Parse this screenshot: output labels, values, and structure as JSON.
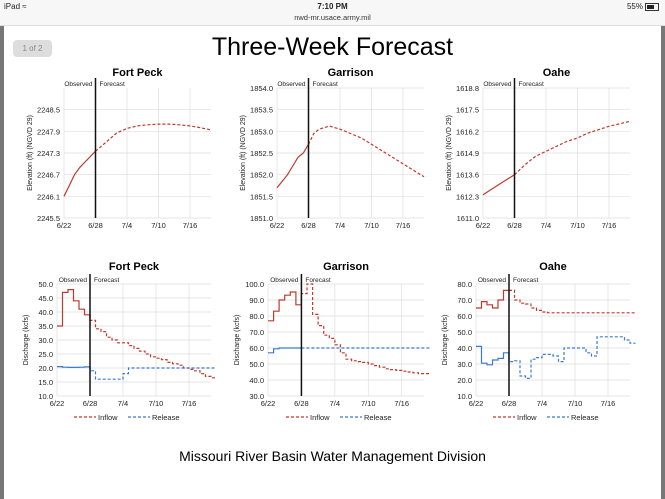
{
  "status_bar": {
    "device": "iPad",
    "wifi_icon": "wifi-icon",
    "time": "7:10 PM",
    "url": "nwd-mr.usace.army.mil",
    "battery": "55%"
  },
  "page_badge": "1 of 2",
  "title": "Three-Week Forecast",
  "footer": "Missouri River Basin Water Management Division",
  "colors": {
    "inflow": "#c0392b",
    "release": "#3c7bd0",
    "divider": "#111111",
    "grid": "#dddddd"
  },
  "chart_data": [
    {
      "type": "line",
      "title": "Fort Peck",
      "ylabel": "Elevation (ft) (NGVD 29)",
      "ylim": [
        2245.5,
        2249.1
      ],
      "yticks": [
        "2245.5",
        "2246.1",
        "2246.7",
        "2247.3",
        "2247.9",
        "2248.5"
      ],
      "xticks": [
        "6/22",
        "6/28",
        "7/4",
        "7/10",
        "7/16"
      ],
      "observed_label": "Observed",
      "forecast_label": "Forecast",
      "split_day": 6,
      "days": 28,
      "series": [
        {
          "name": "Elevation",
          "x": [
            0,
            1,
            2,
            3,
            4,
            5,
            6,
            8,
            10,
            12,
            14,
            16,
            18,
            20,
            22,
            24,
            26,
            28
          ],
          "values": [
            2246.1,
            2246.4,
            2246.7,
            2246.9,
            2247.05,
            2247.2,
            2247.35,
            2247.6,
            2247.85,
            2247.98,
            2248.05,
            2248.08,
            2248.1,
            2248.1,
            2248.08,
            2248.05,
            2248.0,
            2247.94
          ]
        }
      ]
    },
    {
      "type": "line",
      "title": "Garrison",
      "ylabel": "Elevation (ft) (NGVD 29)",
      "ylim": [
        1851.0,
        1854.0
      ],
      "yticks": [
        "1851.0",
        "1851.5",
        "1852.0",
        "1852.5",
        "1853.0",
        "1853.5",
        "1854.0"
      ],
      "xticks": [
        "6/22",
        "6/28",
        "7/4",
        "7/10",
        "7/16"
      ],
      "observed_label": "Observed",
      "forecast_label": "Forecast",
      "split_day": 6,
      "days": 28,
      "series": [
        {
          "name": "Elevation",
          "x": [
            0,
            1,
            2,
            3,
            4,
            5,
            6,
            7,
            8,
            10,
            12,
            14,
            16,
            18,
            20,
            22,
            24,
            26,
            28
          ],
          "values": [
            1851.7,
            1851.85,
            1852.0,
            1852.2,
            1852.4,
            1852.5,
            1852.7,
            1852.95,
            1853.05,
            1853.12,
            1853.05,
            1852.95,
            1852.85,
            1852.7,
            1852.55,
            1852.4,
            1852.25,
            1852.1,
            1851.95
          ]
        }
      ]
    },
    {
      "type": "line",
      "title": "Oahe",
      "ylabel": "Elevation (ft) (NGVD 29)",
      "ylim": [
        1611.0,
        1618.8
      ],
      "yticks": [
        "1611.0",
        "1612.3",
        "1613.6",
        "1614.9",
        "1616.2",
        "1617.5",
        "1618.8"
      ],
      "xticks": [
        "6/22",
        "6/28",
        "7/4",
        "7/10",
        "7/16"
      ],
      "observed_label": "Observed",
      "forecast_label": "Forecast",
      "split_day": 6,
      "days": 28,
      "series": [
        {
          "name": "Elevation",
          "x": [
            0,
            2,
            4,
            6,
            8,
            10,
            12,
            14,
            16,
            18,
            20,
            22,
            24,
            26,
            28
          ],
          "values": [
            1612.4,
            1612.8,
            1613.2,
            1613.6,
            1614.2,
            1614.7,
            1615.0,
            1615.3,
            1615.6,
            1615.8,
            1616.1,
            1616.3,
            1616.5,
            1616.65,
            1616.8
          ]
        }
      ]
    },
    {
      "type": "line",
      "title": "Fort Peck",
      "ylabel": "Discharge (kcfs)",
      "ylim": [
        10,
        50
      ],
      "yticks": [
        "10.0",
        "15.0",
        "20.0",
        "25.0",
        "30.0",
        "35.0",
        "40.0",
        "45.0",
        "50.0"
      ],
      "xticks": [
        "6/22",
        "6/28",
        "7/4",
        "7/10",
        "7/16"
      ],
      "observed_label": "Observed",
      "forecast_label": "Forecast",
      "split_day": 6,
      "days": 28,
      "step": true,
      "series": [
        {
          "name": "Inflow",
          "values": [
            35,
            47,
            48,
            44,
            41,
            39,
            37,
            34,
            33,
            31,
            30,
            29,
            29,
            28,
            27,
            26,
            25,
            24,
            23.5,
            23,
            22,
            21.5,
            21,
            20,
            19.5,
            19,
            18,
            17,
            16.5
          ]
        },
        {
          "name": "Release",
          "values": [
            20.5,
            20.3,
            20.2,
            20.2,
            20.3,
            20.4,
            19,
            16,
            16,
            16,
            16,
            16,
            18,
            20,
            20,
            20,
            20,
            20,
            20,
            20,
            20,
            20,
            20,
            20,
            20,
            20,
            20,
            20,
            20
          ]
        }
      ]
    },
    {
      "type": "line",
      "title": "Garrison",
      "ylabel": "Discharge (kcfs)",
      "ylim": [
        30,
        100
      ],
      "yticks": [
        "30.0",
        "40.0",
        "50.0",
        "60.0",
        "70.0",
        "80.0",
        "90.0",
        "100.0"
      ],
      "xticks": [
        "6/22",
        "6/28",
        "7/4",
        "7/10",
        "7/16"
      ],
      "observed_label": "Observed",
      "forecast_label": "Forecast",
      "split_day": 6,
      "days": 28,
      "step": true,
      "series": [
        {
          "name": "Inflow",
          "values": [
            77,
            83,
            90,
            93,
            95,
            87,
            94,
            100,
            81,
            74,
            68,
            66,
            62,
            57,
            53,
            52,
            51.5,
            51,
            50,
            49,
            48,
            47,
            46.5,
            46,
            45.5,
            45,
            44.5,
            44,
            44
          ]
        },
        {
          "name": "Release",
          "values": [
            57,
            59.5,
            60,
            60,
            60,
            60,
            60,
            60,
            60,
            60,
            60,
            60,
            60,
            60,
            60,
            60,
            60,
            60,
            60,
            60,
            60,
            60,
            60,
            60,
            60,
            60,
            60,
            60,
            60
          ]
        }
      ]
    },
    {
      "type": "line",
      "title": "Oahe",
      "ylabel": "Discharge (kcfs)",
      "ylim": [
        10,
        80
      ],
      "yticks": [
        "10.0",
        "20.0",
        "30.0",
        "40.0",
        "50.0",
        "60.0",
        "70.0",
        "80.0"
      ],
      "xticks": [
        "6/22",
        "6/28",
        "7/4",
        "7/10",
        "7/16"
      ],
      "observed_label": "Observed",
      "forecast_label": "Forecast",
      "split_day": 6,
      "days": 28,
      "step": true,
      "series": [
        {
          "name": "Inflow",
          "values": [
            65,
            69,
            67,
            65,
            70,
            76,
            76,
            70,
            68,
            67.5,
            65,
            63.5,
            62.5,
            62,
            62,
            62,
            62,
            62,
            62,
            62,
            62,
            62,
            62,
            62,
            62,
            62,
            62,
            62,
            62
          ]
        },
        {
          "name": "Release",
          "values": [
            41,
            30.5,
            29.5,
            32.5,
            33.5,
            37,
            31.5,
            32,
            22.5,
            21,
            33,
            34,
            36,
            36,
            35,
            31.5,
            40,
            40,
            40,
            40,
            37,
            35,
            47,
            47,
            47,
            47,
            47,
            45,
            43
          ]
        }
      ]
    }
  ]
}
